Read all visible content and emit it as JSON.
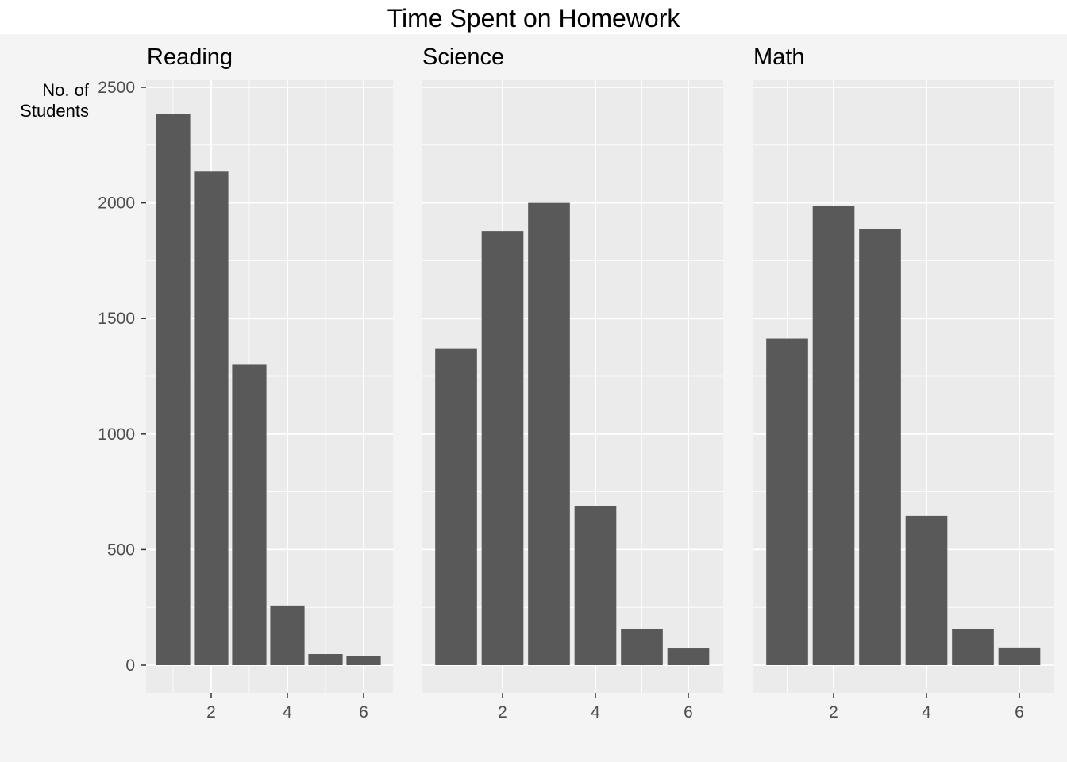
{
  "chart_data": {
    "type": "bar",
    "title": "Time Spent on Homework",
    "ylabel": [
      "No. of",
      "Students"
    ],
    "xlabel": "",
    "ylim": [
      0,
      2500
    ],
    "y_ticks": [
      0,
      500,
      1000,
      1500,
      2000,
      2500
    ],
    "x_ticks": [
      2,
      4,
      6
    ],
    "grid": true,
    "colors": {
      "bar": "#595959",
      "panel_bg": "#ebebeb",
      "grid": "#ffffff",
      "page_bg": "#f4f4f4"
    },
    "facets": [
      {
        "name": "Reading",
        "x": [
          1,
          2,
          3,
          4,
          5,
          6
        ],
        "values": [
          2385,
          2135,
          1300,
          258,
          48,
          38
        ]
      },
      {
        "name": "Science",
        "x": [
          1,
          2,
          3,
          4,
          5,
          6
        ],
        "values": [
          1368,
          1878,
          2000,
          690,
          158,
          72
        ]
      },
      {
        "name": "Math",
        "x": [
          1,
          2,
          3,
          4,
          5,
          6
        ],
        "values": [
          1413,
          1988,
          1887,
          646,
          155,
          76
        ]
      }
    ]
  }
}
